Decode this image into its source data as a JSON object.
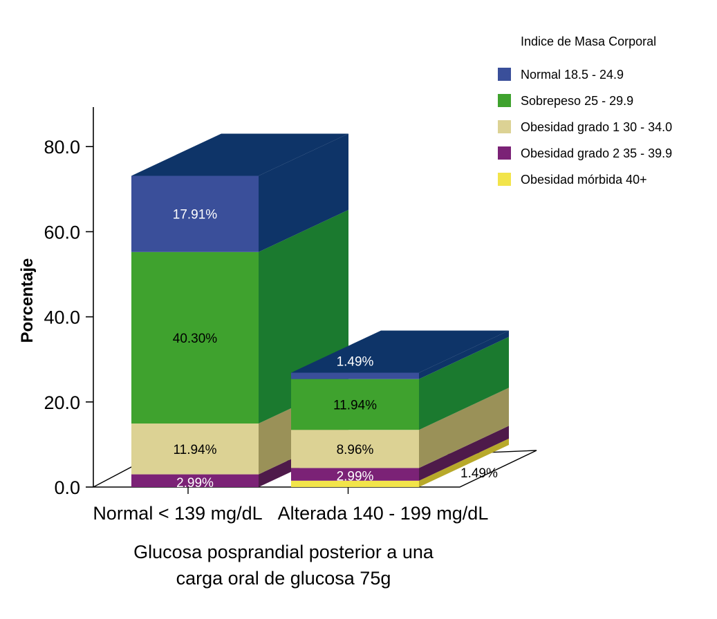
{
  "chart_data": {
    "type": "bar",
    "stacked": true,
    "three_d": true,
    "ylabel": "Porcentaje",
    "xlabel": "Glucosa posprandial posterior a una carga oral de glucosa 75g",
    "xlabel_lines": [
      "Glucosa posprandial posterior a una",
      "carga oral de glucosa 75g"
    ],
    "ylim": [
      0,
      90
    ],
    "yticks": [
      0,
      20,
      40,
      60,
      80
    ],
    "ytick_labels": [
      "0.0",
      "20.0",
      "40.0",
      "60.0",
      "80.0"
    ],
    "categories": [
      "Normal < 139 mg/dL",
      "Alterada 140 - 199 mg/dL"
    ],
    "legend_title": "Indice de Masa Corporal",
    "legend_position": "top-right",
    "grid": false,
    "series": [
      {
        "name": "Obesidad mórbida 40+",
        "values": [
          0,
          1.49
        ],
        "labels": [
          "",
          "1.49%"
        ],
        "color": "#f2e44a",
        "side_color": "#b8a92a",
        "top_color": "#e6d840"
      },
      {
        "name": "Obesidad grado 2 35 - 39.9",
        "values": [
          2.99,
          2.99
        ],
        "labels": [
          "2.99%",
          "2.99%"
        ],
        "color": "#7b2276",
        "side_color": "#4e1a4a",
        "top_color": "#5e1b59"
      },
      {
        "name": "Obesidad grado 1 30 - 34.0",
        "values": [
          11.94,
          8.96
        ],
        "labels": [
          "11.94%",
          "8.96%"
        ],
        "color": "#dcd294",
        "side_color": "#9a9158",
        "top_color": "#b9ae6c"
      },
      {
        "name": "Sobrepeso 25 - 29.9",
        "values": [
          40.3,
          11.94
        ],
        "labels": [
          "40.30%",
          "11.94%"
        ],
        "color": "#3fa22e",
        "side_color": "#1b7a2f",
        "top_color": "#1f7f30"
      },
      {
        "name": "Normal 18.5 - 24.9",
        "values": [
          17.91,
          1.49
        ],
        "labels": [
          "17.91%",
          "1.49%"
        ],
        "color": "#3a4f9a",
        "side_color": "#0e3468",
        "top_color": "#0e3468"
      }
    ],
    "legend_order": [
      "Normal 18.5 - 24.9",
      "Sobrepeso 25 - 29.9",
      "Obesidad grado 1 30 - 34.0",
      "Obesidad grado 2 35 - 39.9",
      "Obesidad mórbida 40+"
    ]
  }
}
